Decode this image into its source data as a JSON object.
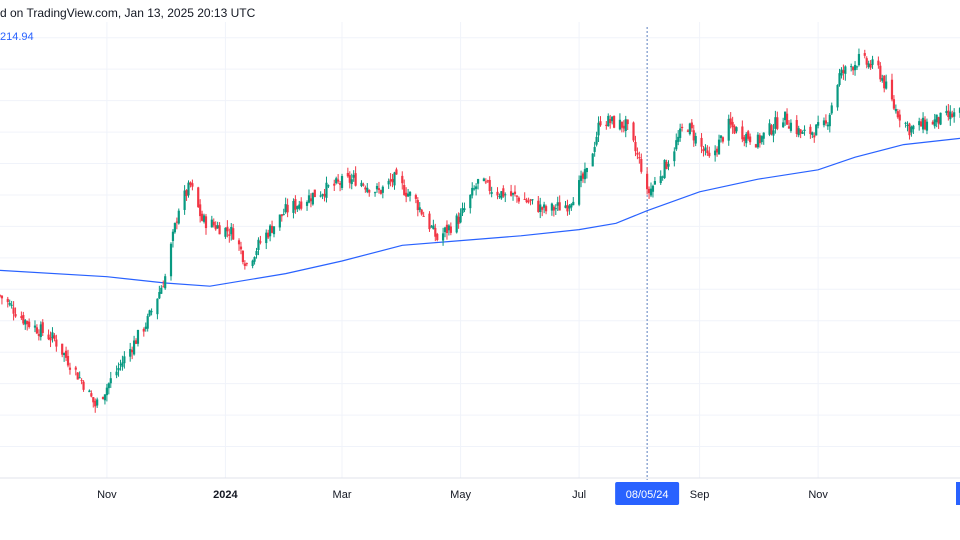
{
  "header": {
    "text": "d on TradingView.com, Jan 13, 2025 20:13 UTC"
  },
  "indicator": {
    "value_label": "214.94",
    "color": "#2962ff"
  },
  "colors": {
    "up": "#089981",
    "down": "#f23645",
    "ma": "#2962ff",
    "grid": "#f0f3fa",
    "crosshair": "#5b7fbf",
    "badge": "#2962ff"
  },
  "crosshair": {
    "label": "08/05/24",
    "date": "2024-08-05"
  },
  "chart_data": {
    "type": "candlestick",
    "x_axis_labels": [
      {
        "label": "Nov",
        "date": "2023-11-01",
        "bold": false
      },
      {
        "label": "2024",
        "date": "2024-01-01",
        "bold": true
      },
      {
        "label": "Mar",
        "date": "2024-03-01",
        "bold": false
      },
      {
        "label": "May",
        "date": "2024-05-01",
        "bold": false
      },
      {
        "label": "Jul",
        "date": "2024-07-01",
        "bold": false
      },
      {
        "label": "Sep",
        "date": "2024-09-01",
        "bold": false
      },
      {
        "label": "Nov",
        "date": "2024-11-01",
        "bold": false
      }
    ],
    "x_range": [
      "2023-09-07",
      "2025-01-13"
    ],
    "y_range": [
      110,
      255
    ],
    "grid": true,
    "close_anchors": [
      [
        "2023-09-07",
        168
      ],
      [
        "2023-09-20",
        160
      ],
      [
        "2023-10-05",
        154
      ],
      [
        "2023-10-20",
        140
      ],
      [
        "2023-10-26",
        133
      ],
      [
        "2023-11-03",
        141
      ],
      [
        "2023-11-12",
        150
      ],
      [
        "2023-11-22",
        160
      ],
      [
        "2023-12-01",
        174
      ],
      [
        "2023-12-08",
        196
      ],
      [
        "2023-12-14",
        203
      ],
      [
        "2023-12-20",
        192
      ],
      [
        "2024-01-05",
        188
      ],
      [
        "2024-01-12",
        178
      ],
      [
        "2024-01-20",
        186
      ],
      [
        "2024-02-01",
        195
      ],
      [
        "2024-02-15",
        200
      ],
      [
        "2024-03-01",
        204
      ],
      [
        "2024-03-08",
        205
      ],
      [
        "2024-03-20",
        201
      ],
      [
        "2024-03-28",
        205
      ],
      [
        "2024-04-08",
        198
      ],
      [
        "2024-04-19",
        186
      ],
      [
        "2024-05-01",
        193
      ],
      [
        "2024-05-10",
        204
      ],
      [
        "2024-05-20",
        201
      ],
      [
        "2024-06-01",
        199
      ],
      [
        "2024-06-14",
        195
      ],
      [
        "2024-06-25",
        197
      ],
      [
        "2024-07-05",
        207
      ],
      [
        "2024-07-12",
        224
      ],
      [
        "2024-07-25",
        222
      ],
      [
        "2024-08-02",
        209
      ],
      [
        "2024-08-05",
        200
      ],
      [
        "2024-08-15",
        210
      ],
      [
        "2024-08-25",
        223
      ],
      [
        "2024-09-06",
        211
      ],
      [
        "2024-09-16",
        222
      ],
      [
        "2024-10-01",
        217
      ],
      [
        "2024-10-14",
        225
      ],
      [
        "2024-10-24",
        219
      ],
      [
        "2024-11-05",
        222
      ],
      [
        "2024-11-12",
        238
      ],
      [
        "2024-11-22",
        243
      ],
      [
        "2024-12-02",
        240
      ],
      [
        "2024-12-10",
        228
      ],
      [
        "2024-12-18",
        221
      ],
      [
        "2025-01-03",
        224
      ],
      [
        "2025-01-13",
        226
      ]
    ],
    "ma_series": {
      "name": "",
      "points": [
        [
          "2023-09-07",
          176
        ],
        [
          "2023-11-01",
          174
        ],
        [
          "2023-12-01",
          172
        ],
        [
          "2023-12-24",
          171
        ],
        [
          "2024-02-01",
          175
        ],
        [
          "2024-03-01",
          179
        ],
        [
          "2024-04-01",
          184
        ],
        [
          "2024-05-01",
          185.5
        ],
        [
          "2024-06-01",
          187
        ],
        [
          "2024-07-01",
          189
        ],
        [
          "2024-07-20",
          191
        ],
        [
          "2024-08-05",
          195
        ],
        [
          "2024-09-01",
          201
        ],
        [
          "2024-10-01",
          205
        ],
        [
          "2024-11-01",
          208
        ],
        [
          "2024-11-20",
          212
        ],
        [
          "2024-12-15",
          216
        ],
        [
          "2025-01-13",
          218
        ]
      ]
    }
  }
}
